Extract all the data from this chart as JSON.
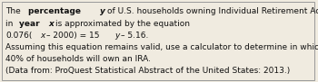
{
  "background_color": "#f0ebe0",
  "border_color": "#999999",
  "font_size": 6.5,
  "text_color": "#111111",
  "line1_parts": [
    {
      "str": "The ",
      "weight": "normal",
      "style": "normal"
    },
    {
      "str": "percentage ",
      "weight": "bold",
      "style": "normal"
    },
    {
      "str": "y",
      "weight": "bold",
      "style": "italic"
    },
    {
      "str": "of U.S. households owning Individual Retirement Accounts (IRAs)",
      "weight": "normal",
      "style": "normal"
    }
  ],
  "line2_parts": [
    {
      "str": "in ",
      "weight": "normal",
      "style": "normal"
    },
    {
      "str": "year ",
      "weight": "bold",
      "style": "normal"
    },
    {
      "str": "x",
      "weight": "bold",
      "style": "italic"
    },
    {
      "str": "is approximated by the equation",
      "weight": "normal",
      "style": "normal"
    }
  ],
  "line3_parts": [
    {
      "str": "0.076(",
      "weight": "normal",
      "style": "normal"
    },
    {
      "str": "x",
      "weight": "normal",
      "style": "italic"
    },
    {
      "str": "– 2000) = 15",
      "weight": "normal",
      "style": "normal"
    },
    {
      "str": "y",
      "weight": "normal",
      "style": "italic"
    },
    {
      "str": "– 5.16.",
      "weight": "normal",
      "style": "normal"
    }
  ],
  "line4_parts": [
    {
      "str": "Assuming this equation remains valid, use a calculator to determine in which year",
      "weight": "normal",
      "style": "normal"
    }
  ],
  "line5_parts": [
    {
      "str": "40% of households will own an IRA.",
      "weight": "normal",
      "style": "normal"
    }
  ],
  "line6_parts": [
    {
      "str": "(Data from: ProQuest Statistical Abstract of the United States: 2013.)",
      "weight": "normal",
      "style": "normal"
    }
  ]
}
